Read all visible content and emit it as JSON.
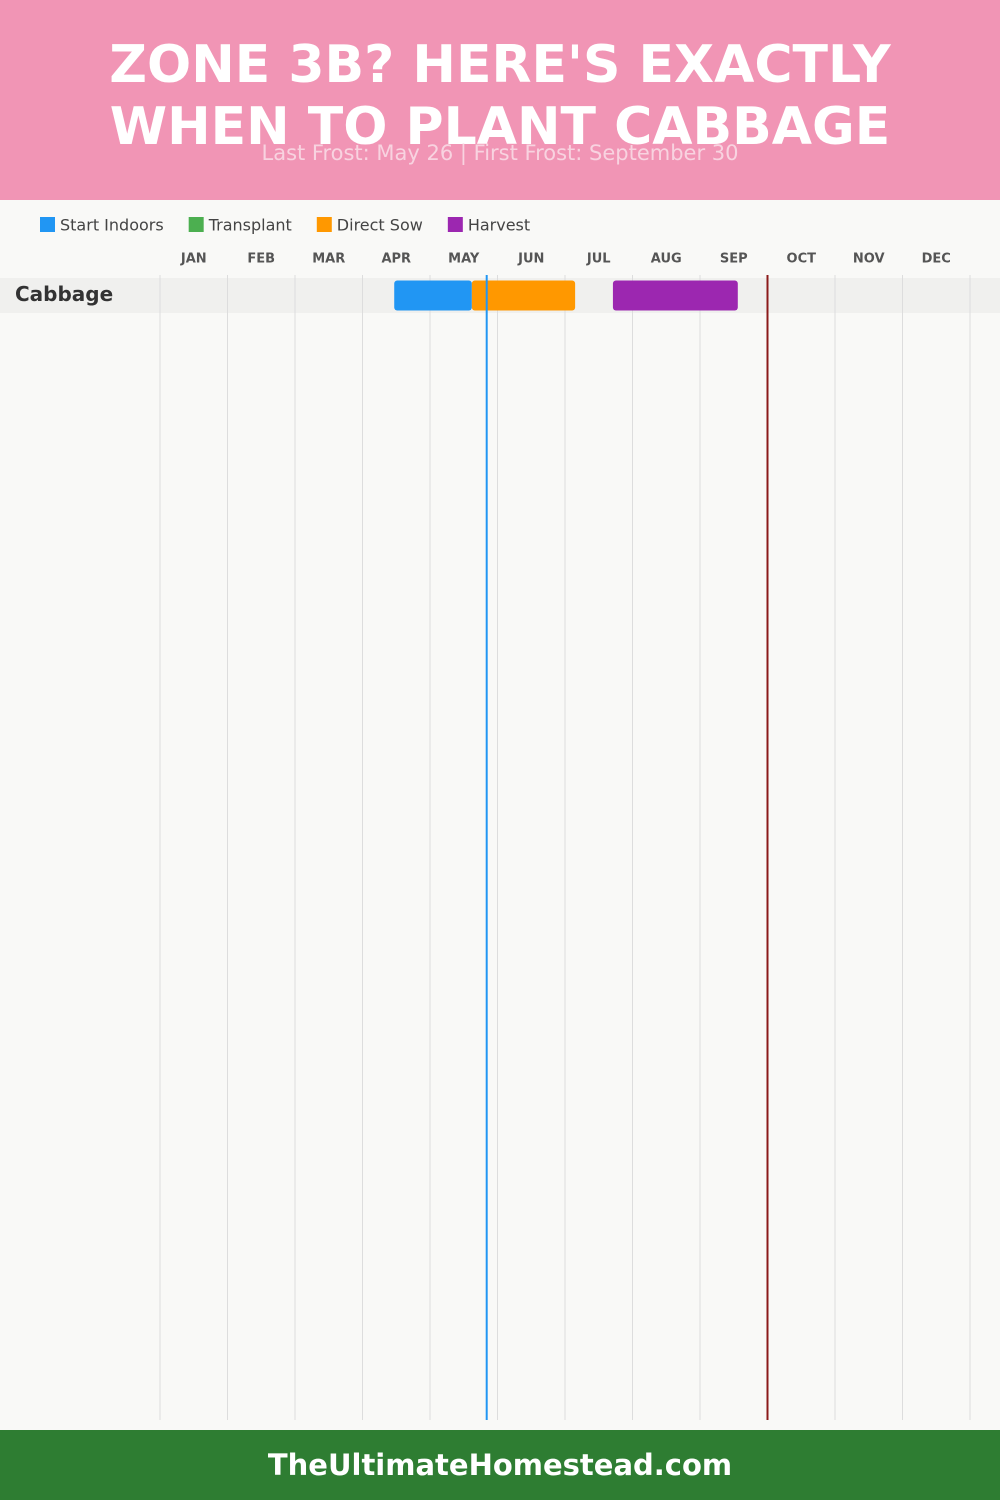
{
  "chart_data": {
    "type": "gantt",
    "title": "ZONE 3B? HERE'S EXACTLY WHEN TO PLANT CABBAGE",
    "subtitle": "Last Frost: May 26 | First Frost: September 30",
    "footer": "TheUltimateHomestead.com",
    "categories": [
      "Cabbage"
    ],
    "series": [
      {
        "name": "Start Indoors",
        "color": "#2196f3",
        "values": [
          [
            3.47,
            4.62
          ]
        ]
      },
      {
        "name": "Transplant",
        "color": "#4caf50",
        "values": [
          null
        ]
      },
      {
        "name": "Direct Sow",
        "color": "#ff9800",
        "values": [
          [
            4.62,
            6.15
          ]
        ]
      },
      {
        "name": "Harvest",
        "color": "#9c27b0",
        "values": [
          [
            6.71,
            8.56
          ]
        ]
      }
    ],
    "frost_lines": [
      {
        "x": 4.84,
        "color": "#2196f3"
      },
      {
        "x": 9.0,
        "color": "#8b1a1a"
      }
    ],
    "xlim": [
      0,
      12
    ],
    "xticks": [
      {
        "value": 0.5,
        "label": "JAN"
      },
      {
        "value": 1.5,
        "label": "FEB"
      },
      {
        "value": 2.5,
        "label": "MAR"
      },
      {
        "value": 3.5,
        "label": "APR"
      },
      {
        "value": 4.5,
        "label": "MAY"
      },
      {
        "value": 5.5,
        "label": "JUN"
      },
      {
        "value": 6.5,
        "label": "JUL"
      },
      {
        "value": 7.5,
        "label": "AUG"
      },
      {
        "value": 8.5,
        "label": "SEP"
      },
      {
        "value": 9.5,
        "label": "OCT"
      },
      {
        "value": 10.5,
        "label": "NOV"
      },
      {
        "value": 11.5,
        "label": "DEC"
      }
    ],
    "grid": true
  }
}
